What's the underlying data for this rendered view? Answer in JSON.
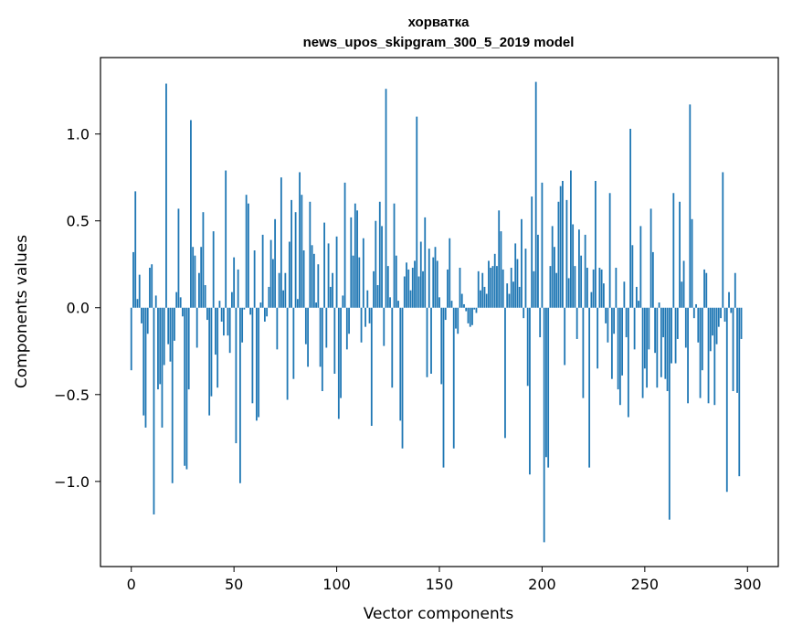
{
  "chart_data": {
    "type": "bar",
    "title_line1": "хорватка",
    "title_line2": "news_upos_skipgram_300_5_2019 model",
    "xlabel": "Vector components",
    "ylabel": "Components values",
    "xlim": [
      -15,
      315
    ],
    "ylim": [
      -1.49,
      1.44
    ],
    "x_ticks": [
      0,
      50,
      100,
      150,
      200,
      250,
      300
    ],
    "x_tick_labels": [
      "0",
      "50",
      "100",
      "150",
      "200",
      "250",
      "300"
    ],
    "y_ticks": [
      -1.0,
      -0.5,
      0.0,
      0.5,
      1.0
    ],
    "y_tick_labels": [
      "−1.0",
      "−0.5",
      "0.0",
      "0.5",
      "1.0"
    ],
    "grid": false,
    "bar_color": "#1f77b4",
    "values": [
      -0.36,
      0.32,
      0.67,
      0.05,
      0.19,
      -0.09,
      -0.62,
      -0.69,
      -0.15,
      0.23,
      0.25,
      -1.19,
      0.07,
      -0.47,
      -0.44,
      -0.69,
      -0.33,
      1.29,
      -0.21,
      -0.31,
      -1.01,
      -0.19,
      0.09,
      0.57,
      0.06,
      -0.05,
      -0.91,
      -0.93,
      -0.47,
      1.08,
      0.35,
      0.3,
      -0.23,
      0.2,
      0.35,
      0.55,
      0.13,
      -0.07,
      -0.62,
      -0.51,
      0.44,
      -0.27,
      -0.46,
      0.04,
      -0.08,
      -0.16,
      0.79,
      -0.16,
      -0.26,
      0.09,
      0.29,
      -0.78,
      0.22,
      -1.01,
      -0.2,
      -0.01,
      0.65,
      0.6,
      -0.04,
      -0.55,
      0.33,
      -0.65,
      -0.63,
      0.03,
      0.42,
      -0.08,
      -0.05,
      0.12,
      0.39,
      0.28,
      0.51,
      -0.24,
      0.2,
      0.75,
      0.1,
      0.2,
      -0.53,
      0.38,
      0.62,
      -0.41,
      0.55,
      0.05,
      0.78,
      0.65,
      0.33,
      -0.21,
      -0.34,
      0.61,
      0.36,
      0.31,
      0.03,
      0.25,
      -0.34,
      -0.48,
      0.49,
      -0.23,
      0.37,
      0.12,
      0.2,
      -0.38,
      0.41,
      -0.64,
      -0.52,
      0.07,
      0.72,
      -0.24,
      -0.15,
      0.52,
      0.3,
      0.6,
      0.56,
      0.29,
      -0.2,
      0.4,
      -0.11,
      0.1,
      -0.09,
      -0.68,
      0.21,
      0.5,
      0.13,
      0.61,
      0.47,
      -0.22,
      1.26,
      0.24,
      0.06,
      -0.46,
      0.6,
      0.3,
      0.04,
      -0.65,
      -0.81,
      0.18,
      0.26,
      0.22,
      0.1,
      0.23,
      0.27,
      1.1,
      0.18,
      0.38,
      0.21,
      0.52,
      -0.4,
      0.34,
      -0.38,
      0.29,
      0.35,
      0.27,
      0.06,
      -0.44,
      -0.92,
      -0.07,
      0.22,
      0.4,
      0.04,
      -0.81,
      -0.12,
      -0.15,
      0.23,
      0.08,
      0.02,
      -0.02,
      -0.09,
      -0.11,
      -0.1,
      -0.01,
      -0.03,
      0.21,
      0.1,
      0.2,
      0.12,
      0.08,
      0.27,
      0.23,
      0.24,
      0.31,
      0.24,
      0.56,
      0.44,
      0.22,
      -0.75,
      0.14,
      0.08,
      0.23,
      0.15,
      0.37,
      0.28,
      0.12,
      0.51,
      -0.06,
      0.34,
      -0.45,
      -0.96,
      0.64,
      0.21,
      1.3,
      0.42,
      -0.17,
      0.72,
      -1.35,
      -0.86,
      -0.92,
      0.24,
      0.47,
      0.35,
      0.2,
      0.61,
      0.7,
      0.73,
      -0.33,
      0.62,
      0.17,
      0.79,
      0.48,
      0.24,
      -0.18,
      0.45,
      0.3,
      -0.52,
      0.42,
      0.23,
      -0.92,
      0.09,
      0.22,
      0.73,
      -0.35,
      0.23,
      0.22,
      0.14,
      -0.09,
      -0.2,
      0.66,
      -0.41,
      -0.15,
      0.23,
      -0.47,
      -0.56,
      -0.39,
      0.15,
      -0.17,
      -0.63,
      1.03,
      0.36,
      -0.24,
      0.12,
      0.04,
      0.47,
      -0.52,
      -0.35,
      -0.46,
      -0.24,
      0.57,
      0.32,
      -0.26,
      -0.46,
      0.03,
      -0.4,
      -0.17,
      -0.41,
      -0.48,
      -1.22,
      -0.32,
      0.66,
      -0.32,
      -0.18,
      0.61,
      0.15,
      0.27,
      -0.23,
      -0.55,
      1.17,
      0.51,
      -0.06,
      0.02,
      -0.2,
      -0.52,
      -0.36,
      0.22,
      0.2,
      -0.55,
      -0.25,
      -0.16,
      -0.56,
      -0.21,
      -0.11,
      -0.06,
      0.78,
      -0.08,
      -1.06,
      0.09,
      -0.03,
      -0.48,
      0.2,
      -0.49,
      -0.97,
      -0.18
    ]
  }
}
